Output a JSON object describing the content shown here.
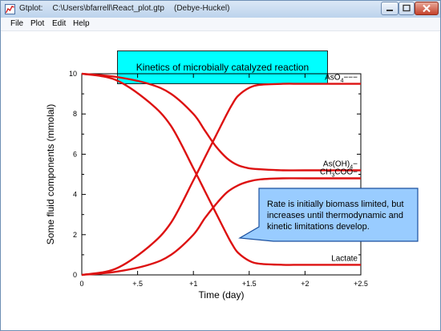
{
  "window": {
    "app_name": "Gtplot:",
    "file_path": "C:\\Users\\bfarrell\\React_plot.gtp",
    "mode": "(Debye-Huckel)"
  },
  "menu": [
    "File",
    "Plot",
    "Edit",
    "Help"
  ],
  "colors": {
    "curve": "#dd1111",
    "title_box": "#00ffff",
    "callout": "#99ccff"
  },
  "plot_title": "Kinetics of microbially catalyzed reaction",
  "callout_text": "Rate is initially biomass limited, but increases until thermodynamic and kinetic limitations develop.",
  "chart_data": {
    "type": "line",
    "xlabel": "Time (day)",
    "ylabel": "Some fluid components (mmolal)",
    "xlim": [
      0,
      2.5
    ],
    "ylim": [
      0,
      10
    ],
    "x_tick_labels": [
      "0",
      "+.5",
      "+1",
      "+1.5",
      "+2",
      "+2.5"
    ],
    "y_tick_labels": [
      "0",
      "2",
      "4",
      "6",
      "8",
      "10"
    ],
    "series": [
      {
        "name": "As(OH)4-",
        "label_base": "As(OH)",
        "label_sub": "4",
        "label_sup": "−",
        "x": [
          0,
          0.3,
          0.6,
          0.8,
          1.0,
          1.1,
          1.2,
          1.3,
          1.4,
          1.5,
          1.6,
          1.8,
          2.0,
          2.5
        ],
        "values": [
          10,
          9.85,
          9.5,
          9.0,
          8.0,
          7.2,
          6.4,
          5.8,
          5.45,
          5.3,
          5.25,
          5.2,
          5.2,
          5.2
        ]
      },
      {
        "name": "Lactate",
        "label_base": "Lactate",
        "label_sub": "",
        "label_sup": "",
        "x": [
          0,
          0.3,
          0.6,
          0.8,
          1.0,
          1.1,
          1.2,
          1.3,
          1.35,
          1.4,
          1.5,
          1.6,
          1.8,
          2.0,
          2.5
        ],
        "values": [
          10,
          9.7,
          8.6,
          7.4,
          5.3,
          4.2,
          3.1,
          2.0,
          1.5,
          1.1,
          0.7,
          0.55,
          0.5,
          0.5,
          0.5
        ]
      },
      {
        "name": "CH3COO-",
        "label_base": "CH",
        "label_sub": "3",
        "label_sup": "COO−",
        "x": [
          0,
          0.3,
          0.6,
          0.8,
          1.0,
          1.1,
          1.2,
          1.3,
          1.4,
          1.5,
          1.6,
          1.8,
          2.0,
          2.5
        ],
        "values": [
          0,
          0.15,
          0.5,
          1.0,
          2.0,
          2.8,
          3.5,
          4.1,
          4.45,
          4.65,
          4.75,
          4.8,
          4.8,
          4.8
        ]
      },
      {
        "name": "AsO4---",
        "label_base": "AsO",
        "label_sub": "4",
        "label_sup": "−−−",
        "x": [
          0,
          0.3,
          0.6,
          0.8,
          1.0,
          1.1,
          1.2,
          1.3,
          1.35,
          1.4,
          1.5,
          1.6,
          1.8,
          2.0,
          2.5
        ],
        "values": [
          0,
          0.3,
          1.4,
          2.6,
          4.7,
          5.8,
          6.9,
          8.0,
          8.5,
          8.9,
          9.3,
          9.45,
          9.5,
          9.5,
          9.5
        ]
      }
    ]
  }
}
